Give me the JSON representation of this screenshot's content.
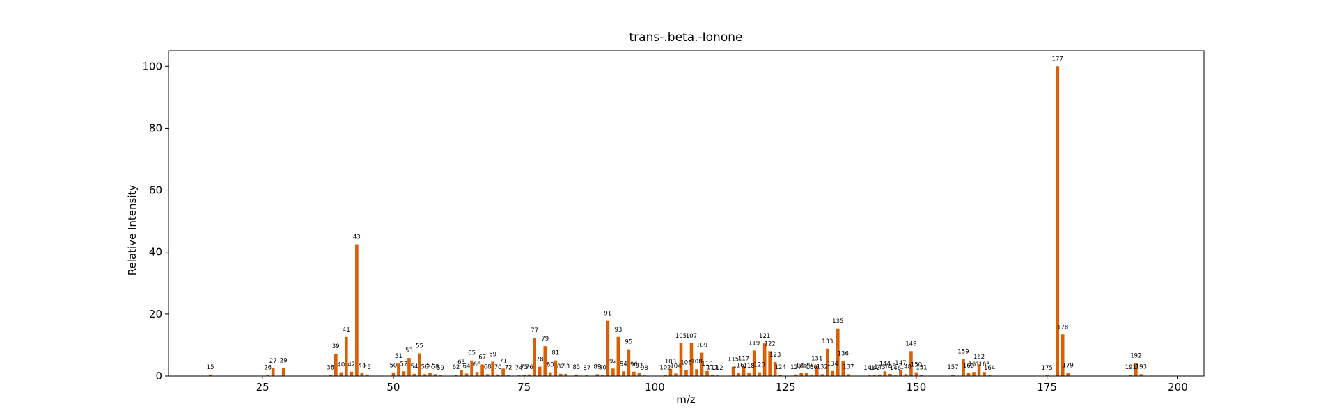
{
  "chart_data": {
    "type": "bar",
    "title": "trans-.beta.-Ionone",
    "xlabel": "m/z",
    "ylabel": "Relative Intensity",
    "xlim": [
      7,
      205
    ],
    "ylim": [
      0,
      105
    ],
    "xticks": [
      25,
      50,
      75,
      100,
      125,
      150,
      175,
      200
    ],
    "yticks": [
      0,
      20,
      40,
      60,
      80,
      100
    ],
    "grid": false,
    "color": "#d95f02",
    "peaks": [
      {
        "mz": 15,
        "intensity": 0.5
      },
      {
        "mz": 26,
        "intensity": 0.3
      },
      {
        "mz": 27,
        "intensity": 2.5
      },
      {
        "mz": 29,
        "intensity": 2.6
      },
      {
        "mz": 38,
        "intensity": 0.3
      },
      {
        "mz": 39,
        "intensity": 7.2
      },
      {
        "mz": 40,
        "intensity": 1.2
      },
      {
        "mz": 41,
        "intensity": 12.6
      },
      {
        "mz": 42,
        "intensity": 1.4
      },
      {
        "mz": 43,
        "intensity": 42.5
      },
      {
        "mz": 44,
        "intensity": 1.0
      },
      {
        "mz": 45,
        "intensity": 0.5
      },
      {
        "mz": 50,
        "intensity": 1.0
      },
      {
        "mz": 51,
        "intensity": 4.0
      },
      {
        "mz": 52,
        "intensity": 1.5
      },
      {
        "mz": 53,
        "intensity": 5.8
      },
      {
        "mz": 54,
        "intensity": 0.7
      },
      {
        "mz": 55,
        "intensity": 7.3
      },
      {
        "mz": 56,
        "intensity": 0.6
      },
      {
        "mz": 57,
        "intensity": 1.0
      },
      {
        "mz": 58,
        "intensity": 0.6
      },
      {
        "mz": 59,
        "intensity": 0.2
      },
      {
        "mz": 62,
        "intensity": 0.4
      },
      {
        "mz": 63,
        "intensity": 2.0
      },
      {
        "mz": 64,
        "intensity": 0.8
      },
      {
        "mz": 65,
        "intensity": 5.0
      },
      {
        "mz": 66,
        "intensity": 1.3
      },
      {
        "mz": 67,
        "intensity": 3.7
      },
      {
        "mz": 68,
        "intensity": 0.6
      },
      {
        "mz": 69,
        "intensity": 4.6
      },
      {
        "mz": 70,
        "intensity": 0.5
      },
      {
        "mz": 71,
        "intensity": 2.4
      },
      {
        "mz": 72,
        "intensity": 0.3
      },
      {
        "mz": 74,
        "intensity": 0.2
      },
      {
        "mz": 75,
        "intensity": 0.4
      },
      {
        "mz": 76,
        "intensity": 0.5
      },
      {
        "mz": 77,
        "intensity": 12.3
      },
      {
        "mz": 78,
        "intensity": 3.0
      },
      {
        "mz": 79,
        "intensity": 9.6
      },
      {
        "mz": 80,
        "intensity": 1.2
      },
      {
        "mz": 81,
        "intensity": 5.0
      },
      {
        "mz": 82,
        "intensity": 0.7
      },
      {
        "mz": 83,
        "intensity": 0.7
      },
      {
        "mz": 85,
        "intensity": 0.5
      },
      {
        "mz": 87,
        "intensity": 0.2
      },
      {
        "mz": 89,
        "intensity": 0.6
      },
      {
        "mz": 90,
        "intensity": 0.3
      },
      {
        "mz": 91,
        "intensity": 17.8
      },
      {
        "mz": 92,
        "intensity": 2.4
      },
      {
        "mz": 93,
        "intensity": 12.6
      },
      {
        "mz": 94,
        "intensity": 1.5
      },
      {
        "mz": 95,
        "intensity": 8.6
      },
      {
        "mz": 96,
        "intensity": 1.4
      },
      {
        "mz": 97,
        "intensity": 0.9
      },
      {
        "mz": 98,
        "intensity": 0.2
      },
      {
        "mz": 102,
        "intensity": 0.3
      },
      {
        "mz": 103,
        "intensity": 2.3
      },
      {
        "mz": 104,
        "intensity": 0.8
      },
      {
        "mz": 105,
        "intensity": 10.6
      },
      {
        "mz": 106,
        "intensity": 1.9
      },
      {
        "mz": 107,
        "intensity": 10.6
      },
      {
        "mz": 108,
        "intensity": 2.2
      },
      {
        "mz": 109,
        "intensity": 7.5
      },
      {
        "mz": 110,
        "intensity": 1.6
      },
      {
        "mz": 111,
        "intensity": 0.3
      },
      {
        "mz": 112,
        "intensity": 0.2
      },
      {
        "mz": 115,
        "intensity": 3.0
      },
      {
        "mz": 116,
        "intensity": 1.0
      },
      {
        "mz": 117,
        "intensity": 3.3
      },
      {
        "mz": 118,
        "intensity": 0.9
      },
      {
        "mz": 119,
        "intensity": 8.2
      },
      {
        "mz": 120,
        "intensity": 1.2
      },
      {
        "mz": 121,
        "intensity": 10.5
      },
      {
        "mz": 122,
        "intensity": 8.0
      },
      {
        "mz": 123,
        "intensity": 4.5
      },
      {
        "mz": 124,
        "intensity": 0.4
      },
      {
        "mz": 127,
        "intensity": 0.5
      },
      {
        "mz": 128,
        "intensity": 1.0
      },
      {
        "mz": 129,
        "intensity": 1.0
      },
      {
        "mz": 130,
        "intensity": 0.4
      },
      {
        "mz": 131,
        "intensity": 3.3
      },
      {
        "mz": 132,
        "intensity": 0.6
      },
      {
        "mz": 133,
        "intensity": 8.8
      },
      {
        "mz": 134,
        "intensity": 1.6
      },
      {
        "mz": 135,
        "intensity": 15.3
      },
      {
        "mz": 136,
        "intensity": 4.8
      },
      {
        "mz": 137,
        "intensity": 0.6
      },
      {
        "mz": 141,
        "intensity": 0.2
      },
      {
        "mz": 142,
        "intensity": 0.2
      },
      {
        "mz": 143,
        "intensity": 0.5
      },
      {
        "mz": 144,
        "intensity": 1.5
      },
      {
        "mz": 145,
        "intensity": 0.7
      },
      {
        "mz": 146,
        "intensity": 0.2
      },
      {
        "mz": 147,
        "intensity": 1.8
      },
      {
        "mz": 148,
        "intensity": 0.6
      },
      {
        "mz": 149,
        "intensity": 8.0
      },
      {
        "mz": 150,
        "intensity": 1.2
      },
      {
        "mz": 151,
        "intensity": 0.3
      },
      {
        "mz": 157,
        "intensity": 0.4
      },
      {
        "mz": 159,
        "intensity": 5.5
      },
      {
        "mz": 160,
        "intensity": 0.9
      },
      {
        "mz": 161,
        "intensity": 1.3
      },
      {
        "mz": 162,
        "intensity": 3.8
      },
      {
        "mz": 163,
        "intensity": 1.3
      },
      {
        "mz": 164,
        "intensity": 0.2
      },
      {
        "mz": 175,
        "intensity": 0.2
      },
      {
        "mz": 177,
        "intensity": 100
      },
      {
        "mz": 178,
        "intensity": 13.4
      },
      {
        "mz": 179,
        "intensity": 1.0
      },
      {
        "mz": 191,
        "intensity": 0.4
      },
      {
        "mz": 192,
        "intensity": 4.2
      },
      {
        "mz": 193,
        "intensity": 0.6
      }
    ]
  }
}
